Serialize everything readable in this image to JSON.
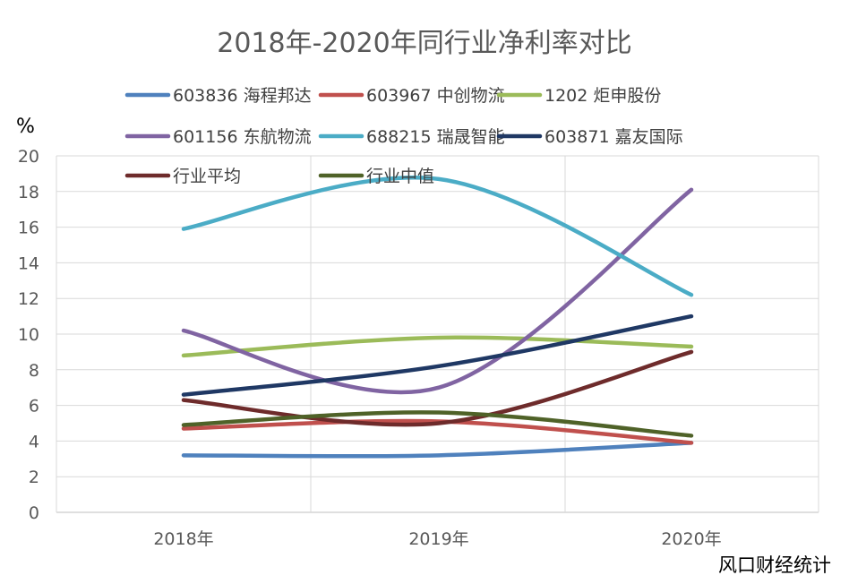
{
  "chart_data": {
    "type": "line",
    "title": "2018年-2020年同行业净利率对比",
    "unit_label": "%",
    "source": "风口财经统计",
    "categories": [
      "2018年",
      "2019年",
      "2020年"
    ],
    "ylim": [
      0,
      20
    ],
    "yticks": [
      0,
      2,
      4,
      6,
      8,
      10,
      12,
      14,
      16,
      18,
      20
    ],
    "grid": true,
    "legend_position": "top",
    "series": [
      {
        "name": "603836 海程邦达",
        "color": "#4F81BD",
        "values": [
          3.2,
          3.2,
          3.9
        ]
      },
      {
        "name": "603967 中创物流",
        "color": "#C0504D",
        "values": [
          4.7,
          5.1,
          3.9
        ]
      },
      {
        "name": "1202 炬申股份",
        "color": "#9BBB59",
        "values": [
          8.8,
          9.8,
          9.3
        ]
      },
      {
        "name": "601156 东航物流",
        "color": "#8064A2",
        "values": [
          10.2,
          7.0,
          18.1
        ]
      },
      {
        "name": "688215 瑞晟智能",
        "color": "#4BACC6",
        "values": [
          15.9,
          18.7,
          12.2
        ]
      },
      {
        "name": "603871 嘉友国际",
        "color": "#1F3864",
        "values": [
          6.6,
          8.2,
          11.0
        ]
      },
      {
        "name": "行业平均",
        "color": "#6E2B2B",
        "values": [
          6.3,
          5.0,
          9.0
        ]
      },
      {
        "name": "行业中值",
        "color": "#4F6228",
        "values": [
          4.9,
          5.6,
          4.3
        ]
      }
    ]
  }
}
